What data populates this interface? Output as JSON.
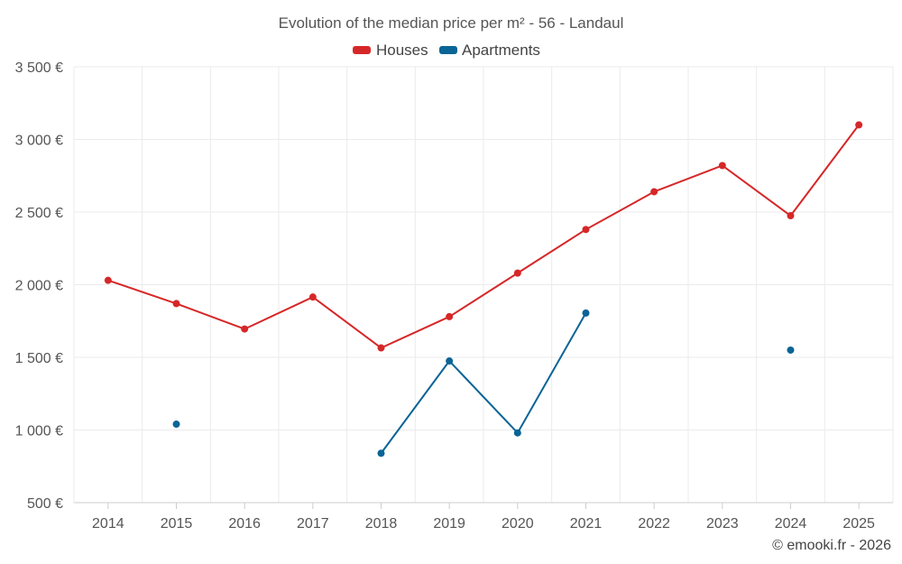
{
  "chart_data": {
    "type": "line",
    "title": "Evolution of the median price per m² - 56 - Landaul",
    "categories": [
      "2014",
      "2015",
      "2016",
      "2017",
      "2018",
      "2019",
      "2020",
      "2021",
      "2022",
      "2023",
      "2024",
      "2025"
    ],
    "y_ticks": [
      "500 €",
      "1 000 €",
      "1 500 €",
      "2 000 €",
      "2 500 €",
      "3 000 €",
      "3 500 €"
    ],
    "y_tick_values": [
      500,
      1000,
      1500,
      2000,
      2500,
      3000,
      3500
    ],
    "ylim": [
      500,
      3500
    ],
    "grid": true,
    "legend_position": "top-center",
    "series": [
      {
        "name": "Houses",
        "color": "#d62728",
        "values": [
          2030,
          1870,
          1695,
          1915,
          1565,
          1780,
          2080,
          2380,
          2640,
          2820,
          2475,
          3100
        ]
      },
      {
        "name": "Apartments",
        "color": "#0a6496",
        "values": [
          null,
          1040,
          null,
          null,
          840,
          1475,
          980,
          1805,
          null,
          null,
          1550,
          null
        ]
      }
    ],
    "credit": "© emooki.fr - 2026"
  }
}
